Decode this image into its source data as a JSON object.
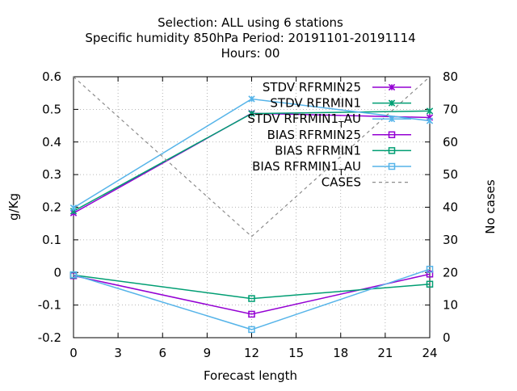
{
  "chart_data": {
    "type": "line",
    "title_lines": [
      "Selection: ALL using     6 stations",
      "Specific humidity 850hPa   Period: 20191101-20191114",
      "Hours:  00"
    ],
    "xlabel": "Forecast length",
    "ylabel": "g/Kg",
    "y2label": "No cases",
    "x_ticks": [
      0,
      3,
      6,
      9,
      12,
      15,
      18,
      21,
      24
    ],
    "x_tick_labels": [
      "0",
      "3",
      "6",
      "9",
      "12",
      "15",
      "18",
      "21",
      "24"
    ],
    "xlim": [
      0,
      24
    ],
    "ylim": [
      -0.2,
      0.6
    ],
    "y_ticks": [
      -0.2,
      -0.1,
      0,
      0.1,
      0.2,
      0.3,
      0.4,
      0.5,
      0.6
    ],
    "y_tick_labels": [
      "-0.2",
      "-0.1",
      "0",
      "0.1",
      "0.2",
      "0.3",
      "0.4",
      "0.5",
      "0.6"
    ],
    "y2lim": [
      0,
      80
    ],
    "y2_ticks": [
      0,
      10,
      20,
      30,
      40,
      50,
      60,
      70,
      80
    ],
    "y2_tick_labels": [
      "0",
      "10",
      "20",
      "30",
      "40",
      "50",
      "60",
      "70",
      "80"
    ],
    "grid": true,
    "legend_position": "top-right",
    "x": [
      0,
      12,
      24
    ],
    "series": [
      {
        "name": "STDV RFRMIN25",
        "axis": "y",
        "values": [
          0.182,
          0.488,
          0.475
        ],
        "color": "#9400d3",
        "marker": "x",
        "dash": false,
        "legend_label": [
          "STDV RFRMIN25"
        ]
      },
      {
        "name": "STDV RFRMIN1",
        "axis": "y",
        "values": [
          0.188,
          0.487,
          0.495
        ],
        "color": "#009e73",
        "marker": "x",
        "dash": false,
        "legend_label": [
          "STDV RFRMIN1"
        ]
      },
      {
        "name": "STDV RFRMIN1_T AU",
        "axis": "y",
        "values": [
          0.198,
          0.532,
          0.465
        ],
        "color": "#56b4e9",
        "marker": "x",
        "dash": false,
        "legend_label": [
          "STDV RFRMIN1",
          "T",
          "AU"
        ]
      },
      {
        "name": "BIAS RFRMIN25",
        "axis": "y",
        "values": [
          -0.01,
          -0.128,
          -0.005
        ],
        "color": "#9400d3",
        "marker": "square",
        "dash": false,
        "legend_label": [
          "BIAS RFRMIN25"
        ]
      },
      {
        "name": "BIAS RFRMIN1",
        "axis": "y",
        "values": [
          -0.008,
          -0.08,
          -0.036
        ],
        "color": "#009e73",
        "marker": "square",
        "dash": false,
        "legend_label": [
          "BIAS RFRMIN1"
        ]
      },
      {
        "name": "BIAS RFRMIN1_T AU",
        "axis": "y",
        "values": [
          -0.007,
          -0.175,
          0.01
        ],
        "color": "#56b4e9",
        "marker": "square",
        "dash": false,
        "legend_label": [
          "BIAS RFRMIN1",
          "T",
          "AU"
        ]
      },
      {
        "name": "CASES",
        "axis": "y2",
        "values": [
          80,
          31,
          80
        ],
        "color": "#8c8c8c",
        "marker": "none",
        "dash": true,
        "legend_label": [
          "CASES"
        ]
      }
    ]
  }
}
